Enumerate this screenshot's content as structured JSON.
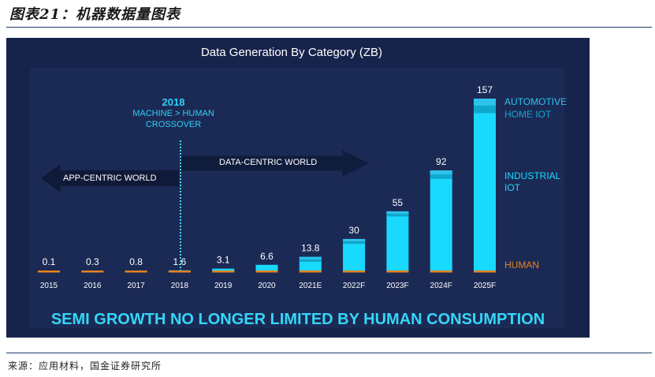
{
  "figure": {
    "title": "图表21：机器数据量图表",
    "source": "来源：应用材料，国金证券研究所"
  },
  "panel": {
    "crossover_year": "2018",
    "crossover_line1": "MACHINE > HUMAN",
    "crossover_line2": "CROSSOVER",
    "left_arrow_label": "APP-CENTRIC WORLD",
    "right_arrow_label": "DATA-CENTRIC WORLD",
    "banner": "SEMI GROWTH NO LONGER LIMITED BY HUMAN CONSUMPTION",
    "colors": {
      "background": "#16234b",
      "accent": "#35d6f7",
      "human": "#e8821e"
    }
  },
  "chart_data": {
    "type": "bar",
    "title": "Data Generation By Category (ZB)",
    "categories": [
      "2015",
      "2016",
      "2017",
      "2018",
      "2019",
      "2020",
      "2021E",
      "2022F",
      "2023F",
      "2024F",
      "2025F"
    ],
    "value_labels": [
      "0.1",
      "0.3",
      "0.8",
      "1.6",
      "3.1",
      "6.6",
      "13.8",
      "30",
      "55",
      "92",
      "157"
    ],
    "values": [
      0.1,
      0.3,
      0.8,
      1.6,
      3.1,
      6.6,
      13.8,
      30,
      55,
      92,
      157
    ],
    "stack_labels": [
      "AUTOMOTIVE",
      "HOME IOT",
      "INDUSTRIAL IOT",
      "HUMAN"
    ],
    "legend_text": {
      "automotive": "AUTOMOTIVE",
      "home_iot": "HOME IOT",
      "industrial_line1": "INDUSTRIAL",
      "industrial_line2": "IOT",
      "human": "HUMAN"
    },
    "series_colors": {
      "industrial": "#1ad9ff",
      "home_iot": "#0fa7cd",
      "automotive": "#2ec2ea",
      "human": "#e8821e"
    },
    "ylim": [
      0,
      160
    ],
    "grid": false
  }
}
